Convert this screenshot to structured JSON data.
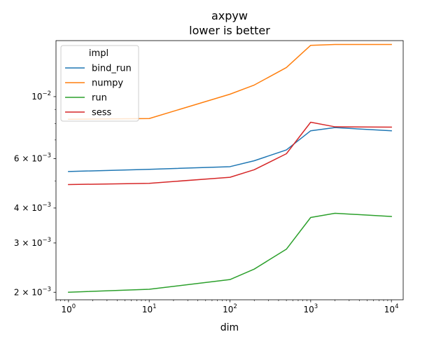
{
  "chart_data": {
    "type": "line",
    "title": "axpyw",
    "subtitle": "lower is better",
    "xlabel": "dim",
    "ylabel": "",
    "xscale": "log",
    "yscale": "log",
    "xlim": [
      0.7,
      14000
    ],
    "ylim": [
      0.00188,
      0.01585
    ],
    "x": [
      1,
      10,
      100,
      200,
      500,
      1000,
      2000,
      10000
    ],
    "x_ticks": [
      {
        "value": 1,
        "base": "10",
        "exp": "0"
      },
      {
        "value": 10,
        "base": "10",
        "exp": "1"
      },
      {
        "value": 100,
        "base": "10",
        "exp": "2"
      },
      {
        "value": 1000,
        "base": "10",
        "exp": "3"
      },
      {
        "value": 10000,
        "base": "10",
        "exp": "4"
      }
    ],
    "y_ticks": [
      {
        "value": 0.002,
        "mant": "2 × 10",
        "exp": "−3"
      },
      {
        "value": 0.003,
        "mant": "3 × 10",
        "exp": "−3"
      },
      {
        "value": 0.004,
        "mant": "4 × 10",
        "exp": "−3"
      },
      {
        "value": 0.006,
        "mant": "6 × 10",
        "exp": "−3"
      },
      {
        "value": 0.01,
        "mant": "10",
        "exp": "−2"
      }
    ],
    "y_minor_ticks": [
      0.005,
      0.007,
      0.008,
      0.009
    ],
    "legend": {
      "title": "impl",
      "placement": "top-left"
    },
    "grid": false,
    "series": [
      {
        "name": "bind_run",
        "color": "#1f77b4",
        "values": [
          0.0054,
          0.0055,
          0.00562,
          0.0059,
          0.00645,
          0.00755,
          0.00775,
          0.00755
        ]
      },
      {
        "name": "numpy",
        "color": "#ff7f0e",
        "values": [
          0.0083,
          0.00835,
          0.0102,
          0.011,
          0.0127,
          0.01525,
          0.01535,
          0.01535
        ]
      },
      {
        "name": "run",
        "color": "#2ca02c",
        "values": [
          0.002,
          0.00205,
          0.00222,
          0.00242,
          0.00285,
          0.0037,
          0.00383,
          0.00373
        ]
      },
      {
        "name": "sess",
        "color": "#d62728",
        "values": [
          0.00485,
          0.0049,
          0.00515,
          0.00548,
          0.00625,
          0.0081,
          0.0078,
          0.00778
        ]
      }
    ]
  }
}
